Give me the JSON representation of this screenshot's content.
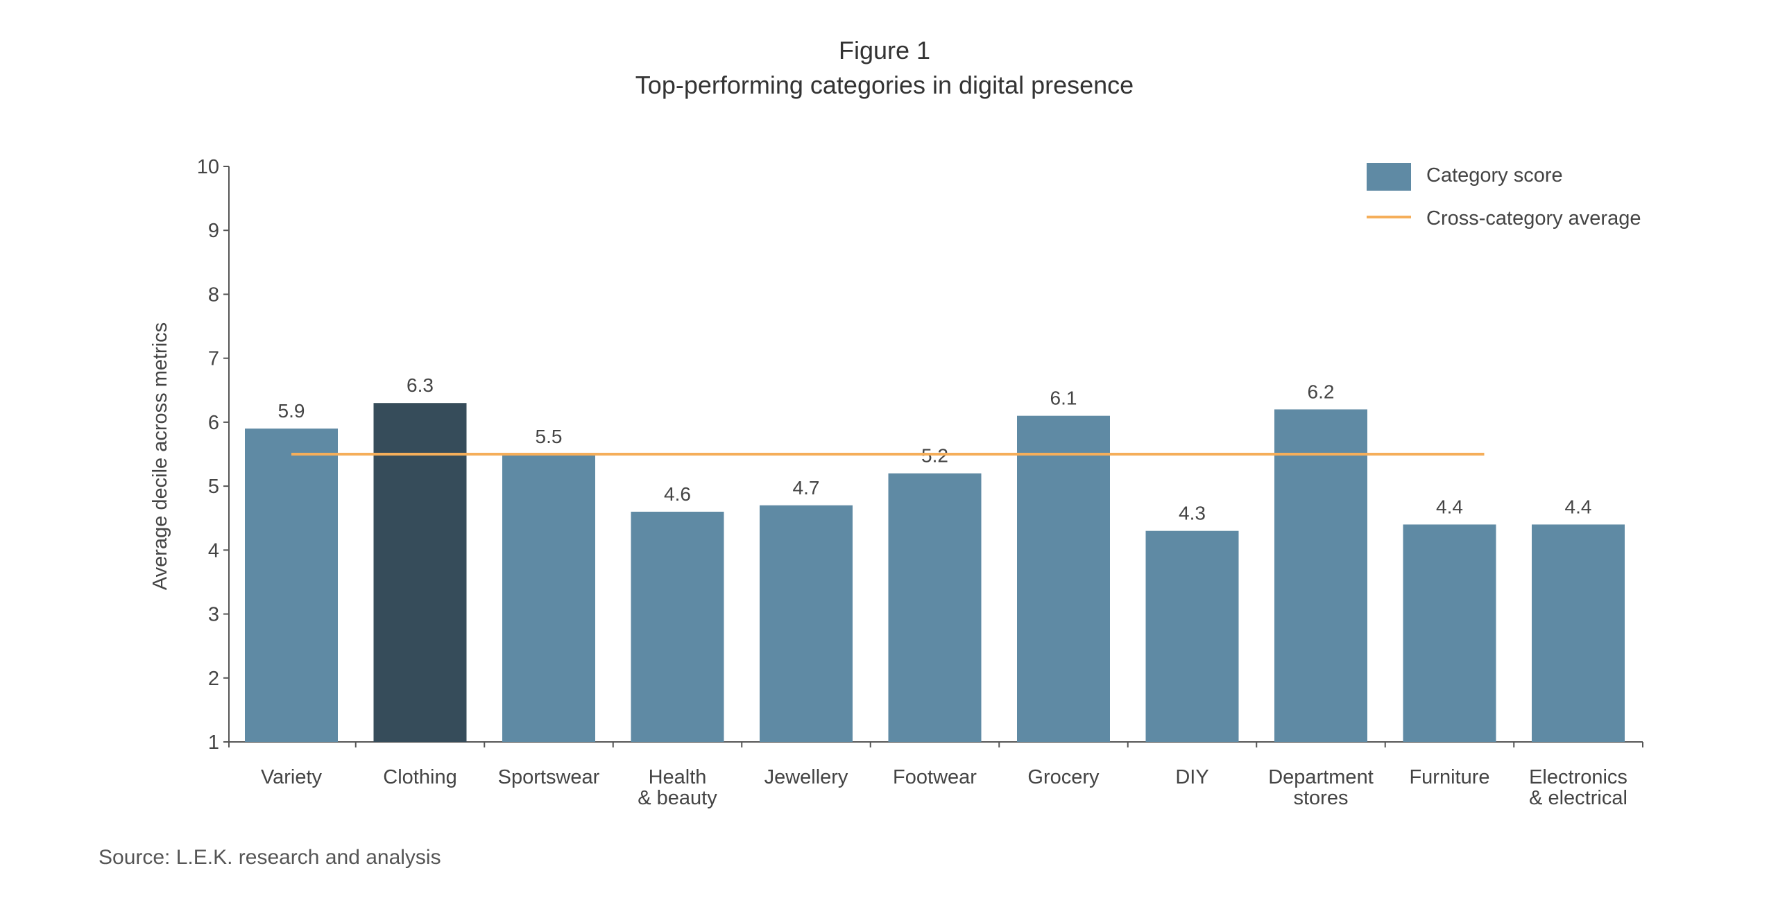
{
  "figure": {
    "label": "Figure 1",
    "title": "Top-performing categories in digital presence",
    "source": "Source: L.E.K. research and analysis"
  },
  "chart_data": {
    "type": "bar",
    "categories": [
      [
        "Variety"
      ],
      [
        "Clothing"
      ],
      [
        "Sportswear"
      ],
      [
        "Health",
        "& beauty"
      ],
      [
        "Jewellery"
      ],
      [
        "Footwear"
      ],
      [
        "Grocery"
      ],
      [
        "DIY"
      ],
      [
        "Department",
        "stores"
      ],
      [
        "Furniture"
      ],
      [
        "Electronics",
        "& electrical"
      ]
    ],
    "series": [
      {
        "name": "Category score",
        "values": [
          5.9,
          6.3,
          5.5,
          4.6,
          4.7,
          5.2,
          6.1,
          4.3,
          6.2,
          4.4,
          4.4
        ],
        "data_labels": [
          "5.9",
          "6.3",
          "5.5",
          "4.6",
          "4.7",
          "5.2",
          "6.1",
          "4.3",
          "6.2",
          "4.4",
          "4.4"
        ],
        "highlight_index": 1
      },
      {
        "name": "Cross-category average",
        "value": 5.5,
        "type": "line"
      }
    ],
    "ylabel": "Average decile across metrics",
    "xlabel": "",
    "ylim": [
      1,
      10
    ],
    "yticks": [
      1,
      2,
      3,
      4,
      5,
      6,
      7,
      8,
      9,
      10
    ],
    "legend_position": "top-right",
    "grid": false,
    "colors": {
      "bar": "#5f8aa4",
      "bar_highlight": "#364c5a",
      "average_line": "#f5ae5a",
      "axis": "#555555",
      "text": "#3a3a3a"
    }
  }
}
